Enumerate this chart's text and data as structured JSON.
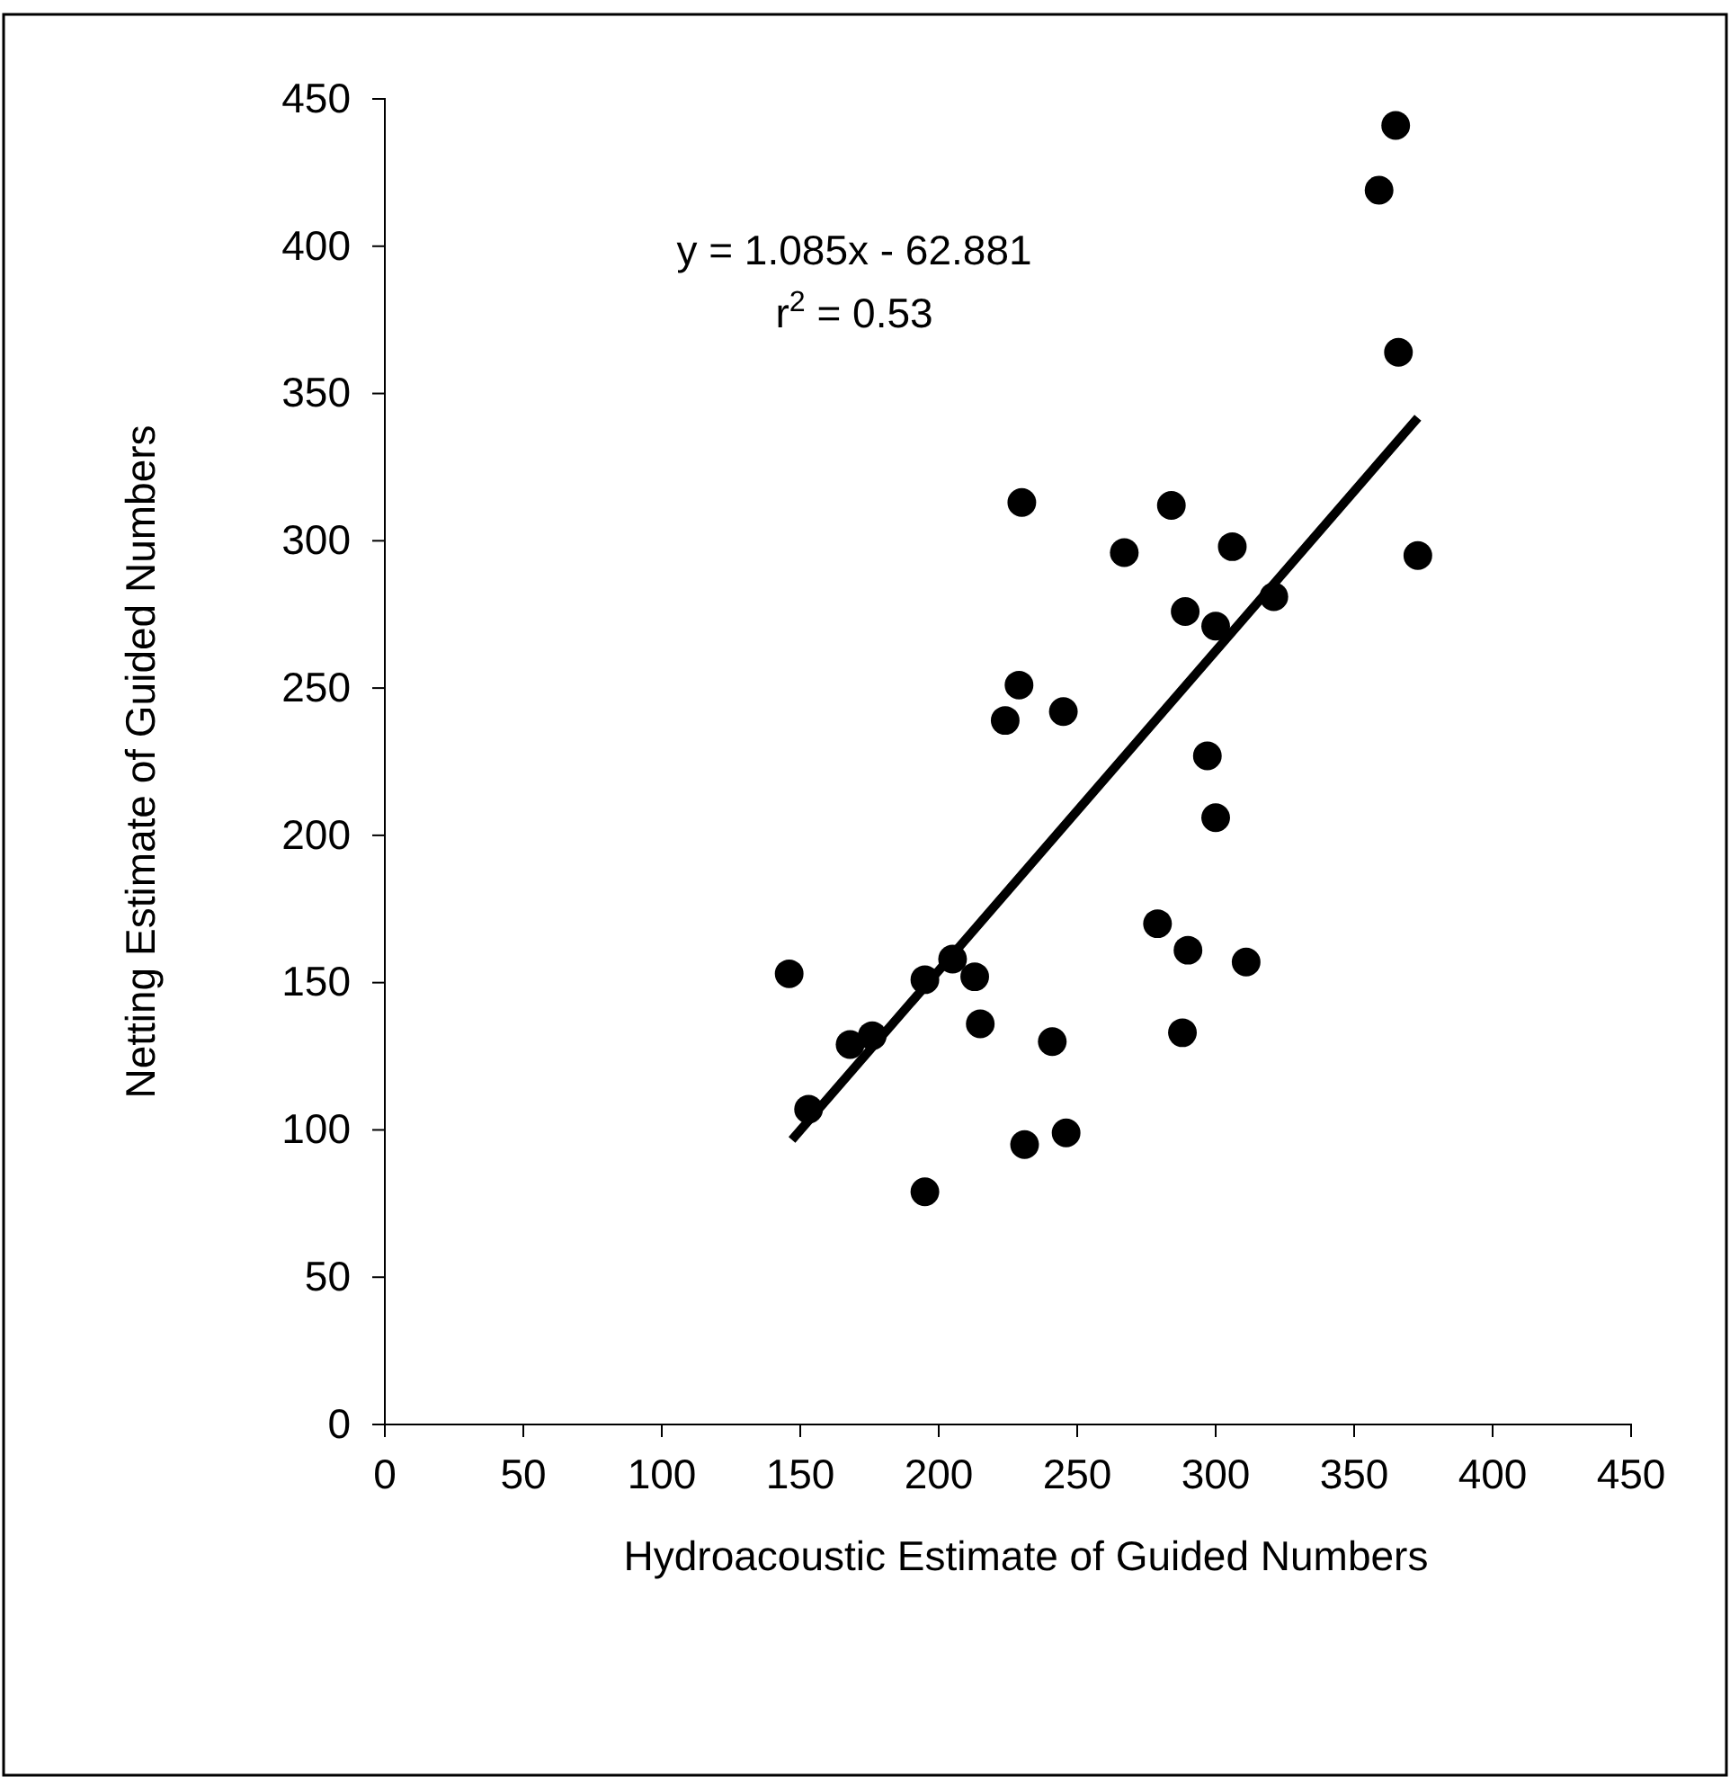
{
  "chart_data": {
    "type": "scatter",
    "xlabel": "Hydroacoustic Estimate of Guided Numbers",
    "ylabel": "Netting Estimate of Guided Numbers",
    "xlim": [
      0,
      450
    ],
    "xticks": [
      0,
      50,
      100,
      150,
      200,
      250,
      300,
      350,
      400,
      450
    ],
    "ylim": [
      0,
      450
    ],
    "yticks": [
      0,
      50,
      100,
      150,
      200,
      250,
      300,
      350,
      400,
      450
    ],
    "grid": false,
    "marker": "circle",
    "annotations": [
      "y = 1.085x - 62.881",
      "r$^{2}$ = 0.53"
    ],
    "series": [
      {
        "color": "#000000",
        "x": [
          365,
          359,
          366,
          230,
          284,
          267,
          306,
          373,
          289,
          300,
          321,
          229,
          224,
          245,
          297,
          300,
          279,
          290,
          311,
          288,
          146,
          195,
          205,
          213,
          215,
          241,
          176,
          168,
          153,
          231,
          246,
          195
        ],
        "values": [
          441,
          419,
          364,
          313,
          312,
          296,
          298,
          295,
          276,
          271,
          281,
          251,
          239,
          242,
          227,
          206,
          170,
          161,
          157,
          133,
          153,
          151,
          158,
          152,
          136,
          130,
          132,
          129,
          107,
          95,
          99,
          79
        ]
      },
      {
        "type": "line",
        "color": "#000000",
        "marker": "none",
        "x": [
          147,
          373
        ],
        "values": [
          96.6,
          341.8
        ]
      }
    ]
  }
}
